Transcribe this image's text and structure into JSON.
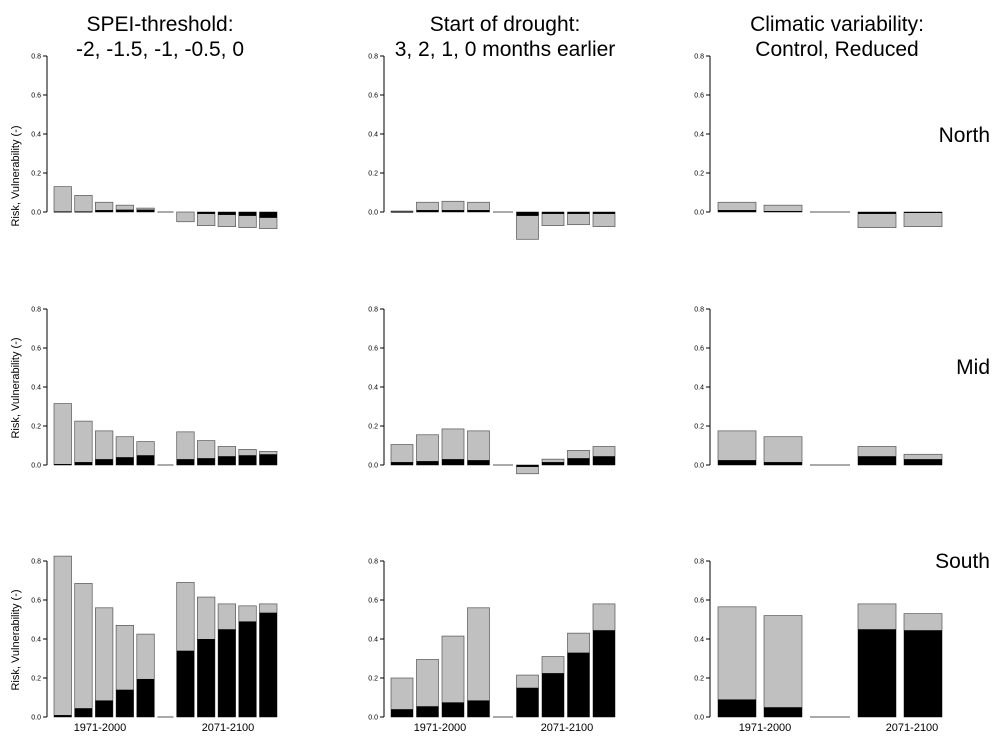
{
  "column_titles": [
    {
      "line1": "SPEI-threshold:",
      "line2": "-2, -1.5, -1, -0.5, 0"
    },
    {
      "line1": "Start of drought:",
      "line2": "3, 2, 1, 0 months earlier"
    },
    {
      "line1": "Climatic variability:",
      "line2": "Control, Reduced"
    }
  ],
  "region_labels": [
    "North",
    "Mid",
    "South"
  ],
  "ylabel": "Risk, Vulnerability (-)",
  "period_labels": [
    "1971-2000",
    "2071-2100"
  ],
  "y_ticks": [
    "0.0",
    "0.2",
    "0.4",
    "0.6",
    "0.8"
  ],
  "colors": {
    "risk": "#c0c0c0",
    "vulnerability": "#000000"
  },
  "chart_data": [
    {
      "type": "bar",
      "column": "SPEI-threshold",
      "region": "North",
      "ylim": [
        -0.1,
        0.8
      ],
      "left": {
        "risk": [
          0.13,
          0.085,
          0.05,
          0.035,
          0.02
        ],
        "vul": [
          0.003,
          0.003,
          0.01,
          0.012,
          0.012
        ]
      },
      "right": {
        "risk": [
          -0.05,
          -0.07,
          -0.075,
          -0.08,
          -0.085
        ],
        "vul": [
          0,
          -0.01,
          -0.015,
          -0.02,
          -0.03
        ]
      }
    },
    {
      "type": "bar",
      "column": "Start of drought",
      "region": "North",
      "ylim": [
        -0.1,
        0.8
      ],
      "left": {
        "risk": [
          0.005,
          0.05,
          0.055,
          0.05
        ],
        "vul": [
          0.002,
          0.01,
          0.01,
          0.01
        ]
      },
      "right": {
        "risk": [
          -0.14,
          -0.07,
          -0.065,
          -0.075
        ],
        "vul": [
          -0.02,
          -0.01,
          -0.01,
          -0.01
        ]
      }
    },
    {
      "type": "bar",
      "column": "Climatic variability",
      "region": "North",
      "ylim": [
        -0.1,
        0.8
      ],
      "left": {
        "risk": [
          0.05,
          0.035
        ],
        "vul": [
          0.01,
          0.005
        ]
      },
      "right": {
        "risk": [
          -0.08,
          -0.075
        ],
        "vul": [
          -0.01,
          -0.005
        ]
      }
    },
    {
      "type": "bar",
      "column": "SPEI-threshold",
      "region": "Mid",
      "ylim": [
        -0.05,
        0.8
      ],
      "left": {
        "risk": [
          0.315,
          0.225,
          0.175,
          0.145,
          0.12
        ],
        "vul": [
          0.005,
          0.015,
          0.03,
          0.04,
          0.05
        ]
      },
      "right": {
        "risk": [
          0.17,
          0.125,
          0.095,
          0.08,
          0.07
        ],
        "vul": [
          0.03,
          0.035,
          0.045,
          0.05,
          0.055
        ]
      }
    },
    {
      "type": "bar",
      "column": "Start of drought",
      "region": "Mid",
      "ylim": [
        -0.05,
        0.8
      ],
      "left": {
        "risk": [
          0.105,
          0.155,
          0.185,
          0.175
        ],
        "vul": [
          0.015,
          0.02,
          0.03,
          0.025
        ]
      },
      "right": {
        "risk": [
          -0.045,
          0.03,
          0.075,
          0.095
        ],
        "vul": [
          -0.01,
          0.015,
          0.035,
          0.045
        ]
      }
    },
    {
      "type": "bar",
      "column": "Climatic variability",
      "region": "Mid",
      "ylim": [
        -0.05,
        0.8
      ],
      "left": {
        "risk": [
          0.175,
          0.145
        ],
        "vul": [
          0.025,
          0.015
        ]
      },
      "right": {
        "risk": [
          0.095,
          0.055
        ],
        "vul": [
          0.045,
          0.03
        ]
      }
    },
    {
      "type": "bar",
      "column": "SPEI-threshold",
      "region": "South",
      "ylim": [
        0,
        0.8
      ],
      "left": {
        "risk": [
          0.825,
          0.685,
          0.56,
          0.47,
          0.425
        ],
        "vul": [
          0.01,
          0.045,
          0.085,
          0.14,
          0.195
        ]
      },
      "right": {
        "risk": [
          0.69,
          0.615,
          0.58,
          0.57,
          0.58
        ],
        "vul": [
          0.34,
          0.4,
          0.45,
          0.49,
          0.535
        ]
      }
    },
    {
      "type": "bar",
      "column": "Start of drought",
      "region": "South",
      "ylim": [
        0,
        0.8
      ],
      "left": {
        "risk": [
          0.2,
          0.295,
          0.415,
          0.56
        ],
        "vul": [
          0.04,
          0.055,
          0.075,
          0.085
        ]
      },
      "right": {
        "risk": [
          0.215,
          0.31,
          0.43,
          0.58
        ],
        "vul": [
          0.15,
          0.225,
          0.33,
          0.445
        ]
      }
    },
    {
      "type": "bar",
      "column": "Climatic variability",
      "region": "South",
      "ylim": [
        0,
        0.8
      ],
      "left": {
        "risk": [
          0.565,
          0.52
        ],
        "vul": [
          0.09,
          0.05
        ]
      },
      "right": {
        "risk": [
          0.58,
          0.53
        ],
        "vul": [
          0.45,
          0.445
        ]
      }
    }
  ]
}
